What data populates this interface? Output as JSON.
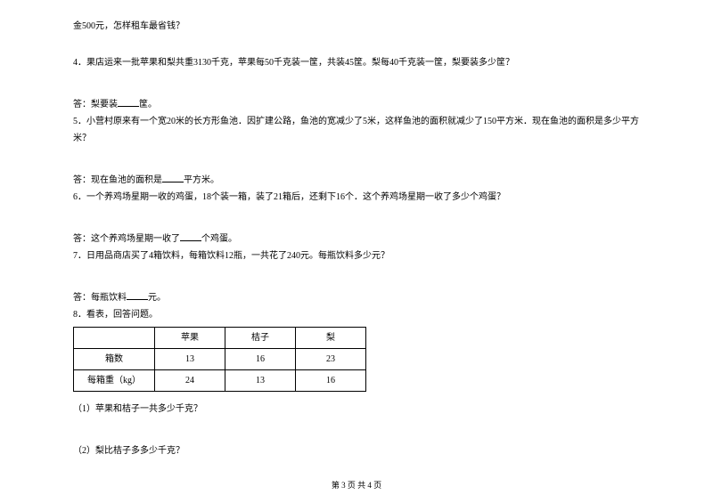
{
  "q3_tail": "金500元，怎样租车最省钱？",
  "q4": "4．果店运来一批苹果和梨共重3130千克，苹果每50千克装一筐，共装45筐。梨每40千克装一筐，梨要装多少筐？",
  "q4_ans_pre": "答：梨要装",
  "q4_ans_post": "筐。",
  "q5": "5．小营村原来有一个宽20米的长方形鱼池．因扩建公路，鱼池的宽减少了5米，这样鱼池的面积就减少了150平方米．现在鱼池的面积是多少平方米？",
  "q5_ans_pre": "答：现在鱼池的面积是",
  "q5_ans_post": "平方米。",
  "q6": "6．一个养鸡场星期一收的鸡蛋，18个装一箱，装了21箱后，还剩下16个．这个养鸡场星期一收了多少个鸡蛋？",
  "q6_ans_pre": "答：这个养鸡场星期一收了",
  "q6_ans_post": "个鸡蛋。",
  "q7": "7．日用品商店买了4箱饮料，每箱饮料12瓶，一共花了240元。每瓶饮料多少元？",
  "q7_ans_pre": "答：每瓶饮料",
  "q7_ans_post": "元。",
  "q8": "8．看表，回答问题。",
  "table": {
    "headers": [
      "",
      "苹果",
      "桔子",
      "梨"
    ],
    "row1": [
      "箱数",
      "13",
      "16",
      "23"
    ],
    "row2": [
      "每箱重（kg）",
      "24",
      "13",
      "16"
    ]
  },
  "q8_1": "（1）苹果和桔子一共多少千克？",
  "q8_2": "（2）梨比桔子多多少千克？",
  "footer": "第 3 页  共 4 页"
}
